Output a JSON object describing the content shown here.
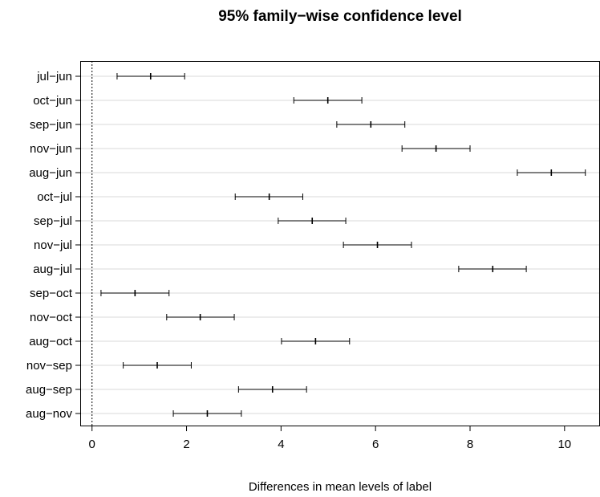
{
  "chart_data": {
    "type": "errorbar",
    "title": "95% family−wise confidence level",
    "xlabel": "Differences in mean levels of label",
    "ylabel": "",
    "xlim": [
      -0.25,
      10.75
    ],
    "xticks": [
      0,
      2,
      4,
      6,
      8,
      10
    ],
    "grid": "horizontal",
    "reference_line": 0,
    "comparisons": [
      {
        "label": "jul−jun",
        "lwr": 0.53,
        "diff": 1.24,
        "upr": 1.96
      },
      {
        "label": "oct−jun",
        "lwr": 4.27,
        "diff": 4.99,
        "upr": 5.71
      },
      {
        "label": "sep−jun",
        "lwr": 5.18,
        "diff": 5.9,
        "upr": 6.62
      },
      {
        "label": "nov−jun",
        "lwr": 6.56,
        "diff": 7.28,
        "upr": 8.0
      },
      {
        "label": "aug−jun",
        "lwr": 9.0,
        "diff": 9.72,
        "upr": 10.44
      },
      {
        "label": "oct−jul",
        "lwr": 3.03,
        "diff": 3.75,
        "upr": 4.46
      },
      {
        "label": "sep−jul",
        "lwr": 3.94,
        "diff": 4.66,
        "upr": 5.37
      },
      {
        "label": "nov−jul",
        "lwr": 5.32,
        "diff": 6.04,
        "upr": 6.76
      },
      {
        "label": "aug−jul",
        "lwr": 7.76,
        "diff": 8.48,
        "upr": 9.19
      },
      {
        "label": "sep−oct",
        "lwr": 0.19,
        "diff": 0.91,
        "upr": 1.63
      },
      {
        "label": "nov−oct",
        "lwr": 1.58,
        "diff": 2.29,
        "upr": 3.01
      },
      {
        "label": "aug−oct",
        "lwr": 4.01,
        "diff": 4.73,
        "upr": 5.45
      },
      {
        "label": "nov−sep",
        "lwr": 0.66,
        "diff": 1.38,
        "upr": 2.1
      },
      {
        "label": "aug−sep",
        "lwr": 3.1,
        "diff": 3.82,
        "upr": 4.54
      },
      {
        "label": "aug−nov",
        "lwr": 1.72,
        "diff": 2.44,
        "upr": 3.16
      }
    ]
  }
}
